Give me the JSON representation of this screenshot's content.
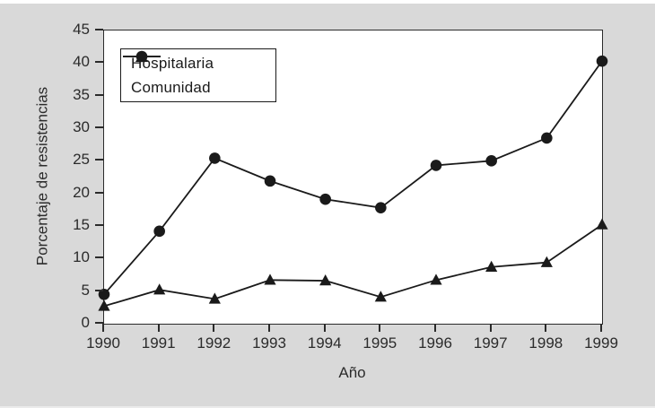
{
  "figure": {
    "background_color": "#d9d9d9",
    "plot_background_color": "#ffffff",
    "line_color": "#1a1a1a",
    "axis_color": "#2b2b2b"
  },
  "chart_data": {
    "type": "line",
    "x": [
      1990,
      1991,
      1992,
      1993,
      1994,
      1995,
      1996,
      1997,
      1998,
      1999
    ],
    "series": [
      {
        "name": "Hospitalaria",
        "marker": "circle",
        "values": [
          4.5,
          14.2,
          25.4,
          21.9,
          19.1,
          17.8,
          24.3,
          25.0,
          28.5,
          40.3
        ]
      },
      {
        "name": "Comunidad",
        "marker": "triangle",
        "values": [
          2.7,
          5.2,
          3.8,
          6.7,
          6.6,
          4.1,
          6.7,
          8.7,
          9.4,
          15.2
        ]
      }
    ],
    "title": "",
    "xlabel": "Año",
    "ylabel": "Porcentaje de resistencias",
    "ylim": [
      0,
      45
    ],
    "ytick_step": 5,
    "grid": false,
    "legend_position": "top-left"
  }
}
